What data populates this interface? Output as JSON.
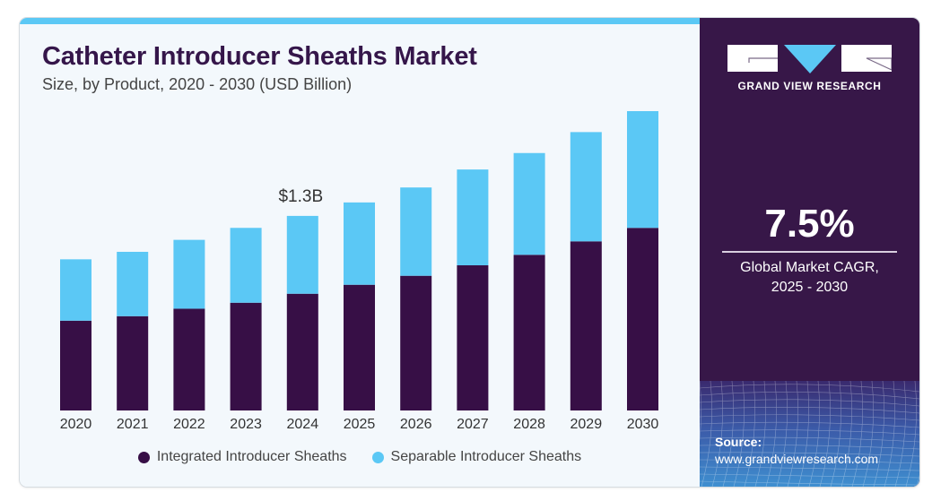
{
  "header": {
    "title": "Catheter Introducer Sheaths Market",
    "subtitle": "Size, by Product, 2020 - 2030 (USD Billion)"
  },
  "brand": {
    "name": "GRAND VIEW RESEARCH",
    "logo_icon": "gvr-logo-icon"
  },
  "stats": {
    "cagr_value": "7.5%",
    "cagr_label_line1": "Global Market CAGR,",
    "cagr_label_line2": "2025 - 2030"
  },
  "source": {
    "label": "Source:",
    "url": "www.grandviewresearch.com"
  },
  "colors": {
    "integrated": "#370f46",
    "separable": "#5bc8f5",
    "accent_strip": "#5bc8f5",
    "panel": "#371748",
    "title": "#35164a"
  },
  "chart_data": {
    "type": "bar",
    "stacked": true,
    "title": "Catheter Introducer Sheaths Market",
    "subtitle": "Size, by Product, 2020 - 2030 (USD Billion)",
    "xlabel": "",
    "ylabel": "",
    "ylim": [
      0,
      2.1
    ],
    "grid": false,
    "legend_position": "bottom",
    "categories": [
      "2020",
      "2021",
      "2022",
      "2023",
      "2024",
      "2025",
      "2026",
      "2027",
      "2028",
      "2029",
      "2030"
    ],
    "series": [
      {
        "name": "Integrated Introducer Sheaths",
        "color": "#370f46",
        "values": [
          0.6,
          0.63,
          0.68,
          0.72,
          0.78,
          0.84,
          0.9,
          0.97,
          1.04,
          1.13,
          1.22
        ]
      },
      {
        "name": "Separable Introducer Sheaths",
        "color": "#5bc8f5",
        "values": [
          0.41,
          0.43,
          0.46,
          0.5,
          0.52,
          0.55,
          0.59,
          0.64,
          0.68,
          0.73,
          0.78
        ]
      }
    ],
    "annotations": [
      {
        "category": "2024",
        "text": "$1.3B"
      }
    ]
  }
}
